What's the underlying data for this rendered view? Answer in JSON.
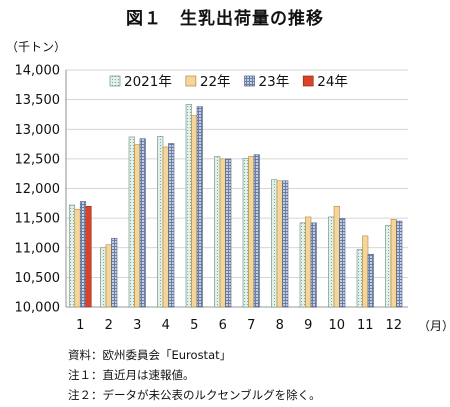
{
  "figure": {
    "title": "図１　生乳出荷量の推移",
    "y_unit": "（千トン）",
    "x_unit": "（月）"
  },
  "notes": [
    "資料：欧州委員会「Eurostat」",
    "注１：直近月は速報値。",
    "注２：データが未公表のルクセンブルグを除く。"
  ],
  "chart_data": {
    "type": "bar",
    "title": "図１　生乳出荷量の推移",
    "xlabel": "（月）",
    "ylabel": "（千トン）",
    "categories": [
      "1",
      "2",
      "3",
      "4",
      "5",
      "6",
      "7",
      "8",
      "9",
      "10",
      "11",
      "12"
    ],
    "ylim": [
      10000,
      14000
    ],
    "yticks": [
      10000,
      10500,
      11000,
      11500,
      12000,
      12500,
      13000,
      13500,
      14000
    ],
    "ytick_labels": [
      "10,000",
      "10,500",
      "11,000",
      "11,500",
      "12,000",
      "12,500",
      "13,000",
      "13,500",
      "14,000"
    ],
    "grid": true,
    "legend": "top-left",
    "series": [
      {
        "name": "2021年",
        "values": [
          11720,
          11000,
          12870,
          12880,
          13420,
          12540,
          12510,
          12150,
          11420,
          11520,
          10970,
          11380
        ],
        "color": "#d8ece4",
        "pattern": "dots"
      },
      {
        "name": "22年",
        "values": [
          11650,
          11050,
          12740,
          12700,
          13230,
          12500,
          12540,
          12130,
          11520,
          11700,
          11200,
          11480
        ],
        "color": "#f6d59a",
        "pattern": "solid"
      },
      {
        "name": "23年",
        "values": [
          11780,
          11160,
          12840,
          12760,
          13380,
          12500,
          12570,
          12130,
          11420,
          11490,
          10890,
          11450
        ],
        "color": "#b7c4dc",
        "pattern": "grid"
      },
      {
        "name": "24年",
        "values": [
          11700,
          null,
          null,
          null,
          null,
          null,
          null,
          null,
          null,
          null,
          null,
          null
        ],
        "color": "#d8432a",
        "pattern": "solid"
      }
    ]
  }
}
